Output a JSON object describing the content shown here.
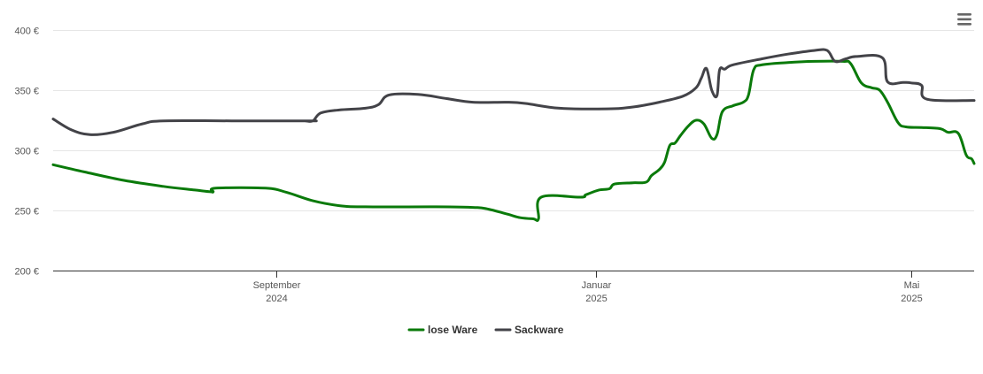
{
  "chart_data": {
    "type": "line",
    "title": "",
    "xlabel": "",
    "ylabel": "",
    "ylim": [
      200,
      400
    ],
    "y_ticks": [
      {
        "value": 200,
        "label": "200 €"
      },
      {
        "value": 250,
        "label": "250 €"
      },
      {
        "value": 300,
        "label": "300 €"
      },
      {
        "value": 350,
        "label": "350 €"
      },
      {
        "value": 400,
        "label": "400 €"
      }
    ],
    "x_range": [
      "2024-06-08",
      "2025-05-25"
    ],
    "x_ticks": [
      {
        "date": "2024-09-01",
        "month": "September",
        "year": "2024"
      },
      {
        "date": "2025-01-01",
        "month": "Januar",
        "year": "2025"
      },
      {
        "date": "2025-05-01",
        "month": "Mai",
        "year": "2025"
      }
    ],
    "grid": "horizontal",
    "legend": "bottom-center",
    "series": [
      {
        "name": "lose Ware",
        "color": "#0a7a0a",
        "points": [
          [
            "2024-06-08",
            288
          ],
          [
            "2024-06-20",
            282
          ],
          [
            "2024-07-05",
            275
          ],
          [
            "2024-07-20",
            270
          ],
          [
            "2024-08-01",
            267
          ],
          [
            "2024-08-07",
            265.5
          ],
          [
            "2024-08-08",
            265.5
          ],
          [
            "2024-08-09",
            268.5
          ],
          [
            "2024-08-28",
            268.5
          ],
          [
            "2024-09-05",
            265
          ],
          [
            "2024-09-15",
            258
          ],
          [
            "2024-09-25",
            254
          ],
          [
            "2024-10-05",
            253
          ],
          [
            "2024-11-01",
            253
          ],
          [
            "2024-11-15",
            252.5
          ],
          [
            "2024-11-20",
            251.5
          ],
          [
            "2024-11-28",
            247
          ],
          [
            "2024-12-03",
            244
          ],
          [
            "2024-12-08",
            243
          ],
          [
            "2024-12-10",
            243
          ],
          [
            "2024-12-11",
            261
          ],
          [
            "2024-12-26",
            261
          ],
          [
            "2024-12-28",
            263
          ],
          [
            "2025-01-02",
            267
          ],
          [
            "2025-01-06",
            268
          ],
          [
            "2025-01-08",
            272
          ],
          [
            "2025-01-15",
            273
          ],
          [
            "2025-01-20",
            273.5
          ],
          [
            "2025-01-22",
            279
          ],
          [
            "2025-01-25",
            284
          ],
          [
            "2025-01-27",
            290
          ],
          [
            "2025-01-29",
            304
          ],
          [
            "2025-01-31",
            306
          ],
          [
            "2025-02-02",
            312
          ],
          [
            "2025-02-05",
            320
          ],
          [
            "2025-02-08",
            325
          ],
          [
            "2025-02-11",
            322
          ],
          [
            "2025-02-14",
            310
          ],
          [
            "2025-02-16",
            313
          ],
          [
            "2025-02-18",
            332
          ],
          [
            "2025-02-22",
            337
          ],
          [
            "2025-02-26",
            340
          ],
          [
            "2025-02-28",
            346
          ],
          [
            "2025-03-02",
            367
          ],
          [
            "2025-03-05",
            371
          ],
          [
            "2025-03-15",
            373
          ],
          [
            "2025-03-25",
            374
          ],
          [
            "2025-04-05",
            374
          ],
          [
            "2025-04-08",
            372
          ],
          [
            "2025-04-12",
            356
          ],
          [
            "2025-04-16",
            352
          ],
          [
            "2025-04-19",
            350
          ],
          [
            "2025-04-22",
            340
          ],
          [
            "2025-04-26",
            323
          ],
          [
            "2025-04-29",
            319.5
          ],
          [
            "2025-05-05",
            319
          ],
          [
            "2025-05-12",
            318
          ],
          [
            "2025-05-15",
            315
          ],
          [
            "2025-05-19",
            314
          ],
          [
            "2025-05-22",
            296
          ],
          [
            "2025-05-24",
            293
          ],
          [
            "2025-05-25",
            289
          ]
        ]
      },
      {
        "name": "Sackware",
        "color": "#434348",
        "points": [
          [
            "2024-06-08",
            326
          ],
          [
            "2024-06-15",
            317
          ],
          [
            "2024-06-22",
            313
          ],
          [
            "2024-07-01",
            315
          ],
          [
            "2024-07-12",
            322
          ],
          [
            "2024-07-20",
            324.5
          ],
          [
            "2024-08-15",
            324.5
          ],
          [
            "2024-09-15",
            324.5
          ],
          [
            "2024-09-10",
            324.5
          ],
          [
            "2024-09-12",
            324.5
          ],
          [
            "2024-09-15",
            324.5
          ],
          [
            "2024-09-18",
            331
          ],
          [
            "2024-09-25",
            333.5
          ],
          [
            "2024-10-05",
            335
          ],
          [
            "2024-10-10",
            338
          ],
          [
            "2024-10-14",
            346
          ],
          [
            "2024-10-25",
            346.5
          ],
          [
            "2024-11-05",
            343
          ],
          [
            "2024-11-15",
            340
          ],
          [
            "2024-11-28",
            340
          ],
          [
            "2024-12-05",
            339
          ],
          [
            "2024-12-18",
            335
          ],
          [
            "2025-01-05",
            334.5
          ],
          [
            "2025-01-15",
            336
          ],
          [
            "2025-01-25",
            340
          ],
          [
            "2025-02-03",
            345
          ],
          [
            "2025-02-08",
            352
          ],
          [
            "2025-02-10",
            360
          ],
          [
            "2025-02-12",
            368
          ],
          [
            "2025-02-14",
            350
          ],
          [
            "2025-02-16",
            345.5
          ],
          [
            "2025-02-17",
            367
          ],
          [
            "2025-02-19",
            367.5
          ],
          [
            "2025-02-22",
            371
          ],
          [
            "2025-03-05",
            376
          ],
          [
            "2025-03-15",
            380
          ],
          [
            "2025-03-25",
            383
          ],
          [
            "2025-03-30",
            383
          ],
          [
            "2025-04-02",
            374
          ],
          [
            "2025-04-06",
            376
          ],
          [
            "2025-04-10",
            378
          ],
          [
            "2025-04-20",
            377
          ],
          [
            "2025-04-22",
            357
          ],
          [
            "2025-04-28",
            356.5
          ],
          [
            "2025-05-01",
            356
          ],
          [
            "2025-05-05",
            354
          ],
          [
            "2025-05-07",
            342.5
          ],
          [
            "2025-05-25",
            341.5
          ]
        ]
      }
    ]
  },
  "toolbar": {
    "menu_icon": "hamburger-menu-icon"
  }
}
